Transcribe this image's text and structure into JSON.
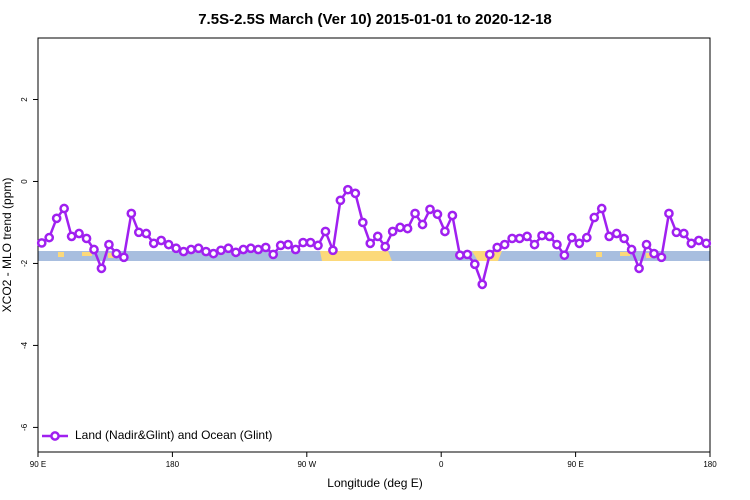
{
  "chart_data": {
    "type": "line",
    "title": "7.5S-2.5S March (Ver 10)   2015-01-01 to 2020-12-18",
    "x_label": "Longitude (deg E)",
    "y_label": "XCO2 - MLO trend (ppm)",
    "x": [
      92.5,
      97.5,
      102.5,
      107.5,
      112.5,
      117.5,
      122.5,
      127.5,
      132.5,
      137.5,
      142.5,
      147.5,
      152.5,
      157.5,
      162.5,
      167.5,
      172.5,
      177.5,
      182.5,
      187.5,
      192.5,
      197.5,
      202.5,
      207.5,
      212.5,
      217.5,
      222.5,
      227.5,
      232.5,
      237.5,
      242.5,
      247.5,
      252.5,
      257.5,
      262.5,
      267.5,
      272.5,
      277.5,
      282.5,
      287.5,
      292.5,
      297.5,
      302.5,
      307.5,
      312.5,
      317.5,
      322.5,
      327.5,
      332.5,
      337.5,
      342.5,
      347.5,
      352.5,
      357.5,
      362.5,
      367.5,
      372.5,
      377.5,
      382.5,
      387.5,
      392.5,
      397.5,
      402.5,
      407.5,
      412.5,
      417.5,
      422.5,
      427.5,
      432.5,
      437.5,
      442.5,
      447.5,
      452.5,
      457.5,
      462.5,
      467.5,
      472.5,
      477.5,
      482.5,
      487.5,
      492.5,
      497.5,
      502.5,
      507.5,
      512.5,
      517.5,
      522.5,
      527.5,
      532.5,
      537.5
    ],
    "series": [
      {
        "name": "Land (Nadir&Glint) and Ocean (Glint)",
        "color": "#a020f0",
        "values": [
          -1.5,
          -1.37,
          -0.9,
          -0.66,
          -1.34,
          -1.27,
          -1.39,
          -1.66,
          -2.12,
          -1.54,
          -1.76,
          -1.85,
          -0.78,
          -1.24,
          -1.27,
          -1.51,
          -1.44,
          -1.54,
          -1.63,
          -1.71,
          -1.66,
          -1.63,
          -1.71,
          -1.76,
          -1.68,
          -1.63,
          -1.73,
          -1.66,
          -1.63,
          -1.66,
          -1.61,
          -1.78,
          -1.56,
          -1.54,
          -1.66,
          -1.49,
          -1.49,
          -1.56,
          -1.22,
          -1.68,
          -0.46,
          -0.2,
          -0.29,
          -1.0,
          -1.51,
          -1.34,
          -1.59,
          -1.22,
          -1.12,
          -1.15,
          -0.78,
          -1.05,
          -0.68,
          -0.8,
          -1.22,
          -0.83,
          -1.8,
          -1.78,
          -2.02,
          -2.51,
          -1.78,
          -1.61,
          -1.54,
          -1.39,
          -1.39,
          -1.34,
          -1.54,
          -1.32,
          -1.34,
          -1.54,
          -1.8,
          -1.37,
          -1.51,
          -1.37,
          -0.88,
          -0.66,
          -1.34,
          -1.27,
          -1.39,
          -1.66,
          -2.12,
          -1.54,
          -1.76,
          -1.85,
          -0.78,
          -1.24,
          -1.27,
          -1.51,
          -1.44,
          -1.51
        ]
      }
    ],
    "xlim": [
      90,
      540
    ],
    "xticks": [
      {
        "value": 90,
        "label": "90 E"
      },
      180,
      {
        "value": 270,
        "label": "90 W"
      },
      {
        "value": 360,
        "label": "0"
      },
      {
        "value": 450,
        "label": "90 E"
      },
      {
        "value": 540,
        "label": "180"
      }
    ],
    "ylim": [
      -6.6,
      3.5
    ],
    "yticks": [
      -6,
      -4,
      -2,
      0,
      2
    ],
    "legend": "bottom-left"
  }
}
